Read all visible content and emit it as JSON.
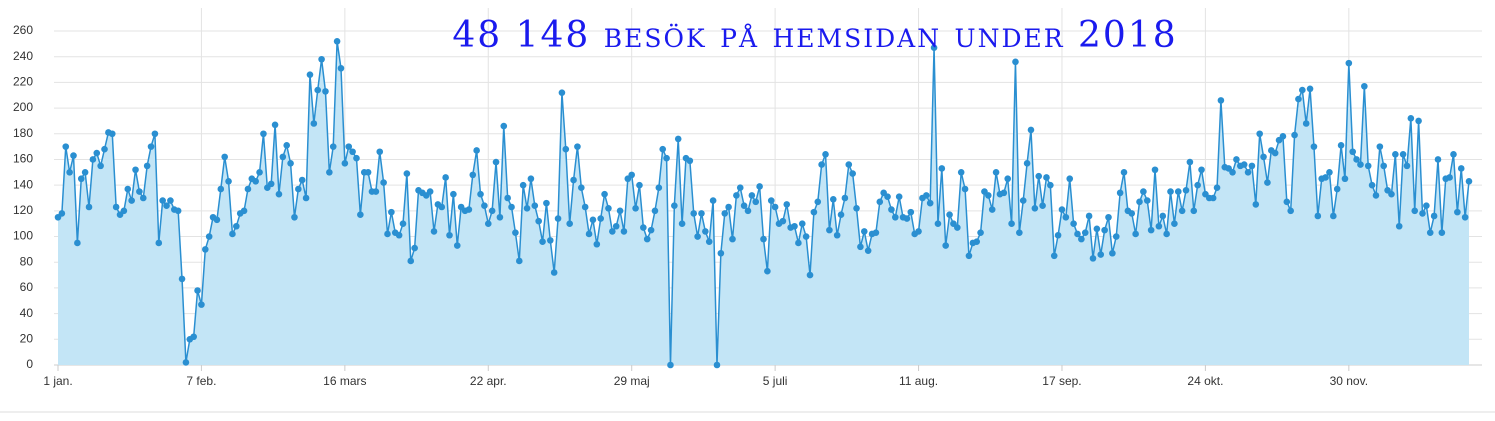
{
  "chart_data": {
    "type": "area",
    "title": "48 148 besök på hemsidan under 2018",
    "color": "#2a8fd1",
    "fill": "#c3e5f6",
    "grid": true,
    "xlim": [
      1,
      365
    ],
    "xticks": [
      {
        "value": 1,
        "label": "1 jan."
      },
      {
        "value": 38,
        "label": "7 feb."
      },
      {
        "value": 75,
        "label": "16 mars"
      },
      {
        "value": 112,
        "label": "22 apr."
      },
      {
        "value": 149,
        "label": "29 maj"
      },
      {
        "value": 186,
        "label": "5 juli"
      },
      {
        "value": 223,
        "label": "11 aug."
      },
      {
        "value": 260,
        "label": "17 sep."
      },
      {
        "value": 297,
        "label": "24 okt."
      },
      {
        "value": 334,
        "label": "30 nov."
      }
    ],
    "ylim": [
      0,
      260
    ],
    "yticks": [
      0,
      20,
      40,
      60,
      80,
      100,
      120,
      140,
      160,
      180,
      200,
      220,
      240,
      260
    ],
    "x": [
      1,
      2,
      3,
      4,
      5,
      6,
      7,
      8,
      9,
      10,
      11,
      12,
      13,
      14,
      15,
      16,
      17,
      18,
      19,
      20,
      21,
      22,
      23,
      24,
      25,
      26,
      27,
      28,
      29,
      30,
      31,
      32,
      33,
      34,
      35,
      36,
      37,
      38,
      39,
      40,
      41,
      42,
      43,
      44,
      45,
      46,
      47,
      48,
      49,
      50,
      51,
      52,
      53,
      54,
      55,
      56,
      57,
      58,
      59,
      60,
      61,
      62,
      63,
      64,
      65,
      66,
      67,
      68,
      69,
      70,
      71,
      72,
      73,
      74,
      75,
      76,
      77,
      78,
      79,
      80,
      81,
      82,
      83,
      84,
      85,
      86,
      87,
      88,
      89,
      90,
      91,
      92,
      93,
      94,
      95,
      96,
      97,
      98,
      99,
      100,
      101,
      102,
      103,
      104,
      105,
      106,
      107,
      108,
      109,
      110,
      111,
      112,
      113,
      114,
      115,
      116,
      117,
      118,
      119,
      120,
      121,
      122,
      123,
      124,
      125,
      126,
      127,
      128,
      129,
      130,
      131,
      132,
      133,
      134,
      135,
      136,
      137,
      138,
      139,
      140,
      141,
      142,
      143,
      144,
      145,
      146,
      147,
      148,
      149,
      150,
      151,
      152,
      153,
      154,
      155,
      156,
      157,
      158,
      159,
      160,
      161,
      162,
      163,
      164,
      165,
      166,
      167,
      168,
      169,
      170,
      171,
      172,
      173,
      174,
      175,
      176,
      177,
      178,
      179,
      180,
      181,
      182,
      183,
      184,
      185,
      186,
      187,
      188,
      189,
      190,
      191,
      192,
      193,
      194,
      195,
      196,
      197,
      198,
      199,
      200,
      201,
      202,
      203,
      204,
      205,
      206,
      207,
      208,
      209,
      210,
      211,
      212,
      213,
      214,
      215,
      216,
      217,
      218,
      219,
      220,
      221,
      222,
      223,
      224,
      225,
      226,
      227,
      228,
      229,
      230,
      231,
      232,
      233,
      234,
      235,
      236,
      237,
      238,
      239,
      240,
      241,
      242,
      243,
      244,
      245,
      246,
      247,
      248,
      249,
      250,
      251,
      252,
      253,
      254,
      255,
      256,
      257,
      258,
      259,
      260,
      261,
      262,
      263,
      264,
      265,
      266,
      267,
      268,
      269,
      270,
      271,
      272,
      273,
      274,
      275,
      276,
      277,
      278,
      279,
      280,
      281,
      282,
      283,
      284,
      285,
      286,
      287,
      288,
      289,
      290,
      291,
      292,
      293,
      294,
      295,
      296,
      297,
      298,
      299,
      300,
      301,
      302,
      303,
      304,
      305,
      306,
      307,
      308,
      309,
      310,
      311,
      312,
      313,
      314,
      315,
      316,
      317,
      318,
      319,
      320,
      321,
      322,
      323,
      324,
      325,
      326,
      327,
      328,
      329,
      330,
      331,
      332,
      333,
      334,
      335,
      336,
      337,
      338,
      339,
      340,
      341,
      342,
      343,
      344,
      345,
      346,
      347,
      348,
      349,
      350,
      351,
      352,
      353,
      354,
      355,
      356,
      357,
      358,
      359,
      360,
      361,
      362,
      363,
      364,
      365
    ],
    "values": [
      115,
      118,
      170,
      150,
      163,
      95,
      145,
      150,
      123,
      160,
      165,
      155,
      168,
      181,
      180,
      123,
      117,
      120,
      137,
      128,
      152,
      135,
      130,
      155,
      170,
      180,
      95,
      128,
      124,
      128,
      121,
      120,
      67,
      2,
      20,
      22,
      58,
      47,
      90,
      100,
      115,
      113,
      137,
      162,
      143,
      102,
      108,
      118,
      120,
      137,
      145,
      143,
      150,
      180,
      138,
      141,
      187,
      133,
      162,
      171,
      157,
      115,
      137,
      144,
      130,
      226,
      188,
      214,
      238,
      213,
      150,
      170,
      252,
      231,
      157,
      170,
      166,
      161,
      117,
      150,
      150,
      135,
      135,
      166,
      142,
      102,
      119,
      103,
      101,
      110,
      149,
      81,
      91,
      136,
      134,
      132,
      135,
      104,
      125,
      123,
      146,
      101,
      133,
      93,
      123,
      120,
      121,
      148,
      167,
      133,
      124,
      110,
      120,
      158,
      115,
      186,
      130,
      123,
      103,
      81,
      140,
      122,
      145,
      124,
      112,
      96,
      126,
      97,
      72,
      114,
      212,
      168,
      110,
      144,
      170,
      138,
      123,
      102,
      113,
      94,
      114,
      133,
      122,
      104,
      108,
      120,
      104,
      145,
      148,
      122,
      140,
      107,
      98,
      105,
      120,
      138,
      168,
      161,
      0,
      124,
      176,
      110,
      161,
      159,
      118,
      100,
      118,
      104,
      96,
      128,
      0,
      87,
      118,
      123,
      98,
      132,
      138,
      124,
      120,
      132,
      127,
      139,
      98,
      73,
      128,
      123,
      110,
      112,
      125,
      107,
      108,
      95,
      110,
      100,
      70,
      119,
      127,
      156,
      164,
      105,
      129,
      101,
      117,
      130,
      156,
      149,
      122,
      92,
      104,
      89,
      102,
      103,
      127,
      134,
      131,
      121,
      115,
      131,
      115,
      114,
      119,
      102,
      104,
      130,
      132,
      126,
      247,
      110,
      153,
      93,
      117,
      110,
      107,
      150,
      137,
      85,
      95,
      96,
      103,
      135,
      132,
      121,
      150,
      133,
      134,
      145,
      110,
      236,
      103,
      128,
      157,
      183,
      122,
      147,
      124,
      146,
      140,
      85,
      101,
      121,
      115,
      145,
      110,
      102,
      98,
      103,
      116,
      83,
      106,
      86,
      105,
      115,
      87,
      100,
      134,
      150,
      120,
      118,
      102,
      127,
      135,
      128,
      105,
      152,
      108,
      116,
      102,
      135,
      110,
      135,
      120,
      136,
      158,
      120,
      140,
      152,
      133,
      130,
      130,
      138,
      206,
      154,
      153,
      150,
      160,
      155,
      156,
      150,
      155,
      125,
      180,
      162,
      142,
      167,
      165,
      175,
      178,
      127,
      120,
      179,
      207,
      214,
      188,
      215,
      170,
      116,
      145,
      146,
      150,
      116,
      137,
      171,
      145,
      235,
      166,
      160,
      156,
      217,
      155,
      140,
      132,
      170,
      155,
      136,
      133,
      164,
      108,
      164,
      155,
      192,
      120,
      190,
      118,
      124,
      103,
      116,
      160,
      103,
      145,
      146,
      164,
      119,
      153,
      115,
      143
    ]
  }
}
